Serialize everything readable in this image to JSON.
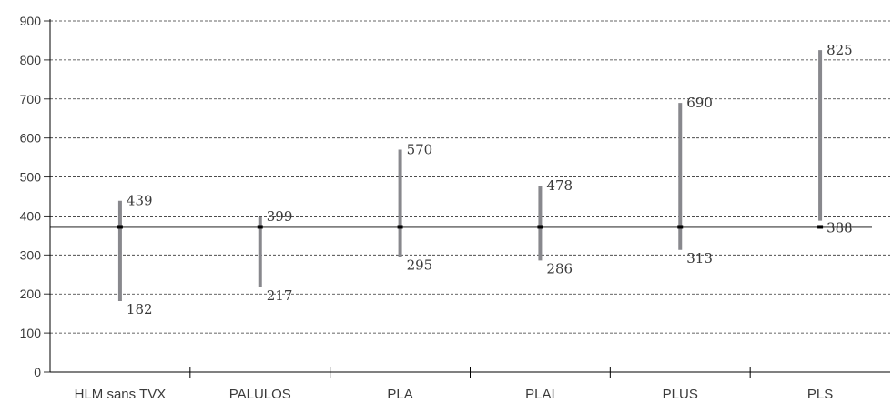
{
  "chart_data": {
    "type": "range-bar",
    "categories": [
      "HLM sans TVX",
      "PALULOS",
      "PLA",
      "PLAI",
      "PLUS",
      "PLS"
    ],
    "series": [
      {
        "low": [
          182,
          217,
          295,
          286,
          313,
          388
        ],
        "high": [
          439,
          399,
          570,
          478,
          690,
          825
        ]
      }
    ],
    "reference_line": 372,
    "ylim": [
      0,
      900
    ],
    "yticks": [
      0,
      100,
      200,
      300,
      400,
      500,
      600,
      700,
      800,
      900
    ],
    "grid": "horizontal dashed",
    "title": "",
    "xlabel": "",
    "ylabel": "",
    "colors": {
      "bar": "#88888d",
      "reference": "#000000",
      "grid": "#333333",
      "text": "#3a3a3a"
    }
  }
}
